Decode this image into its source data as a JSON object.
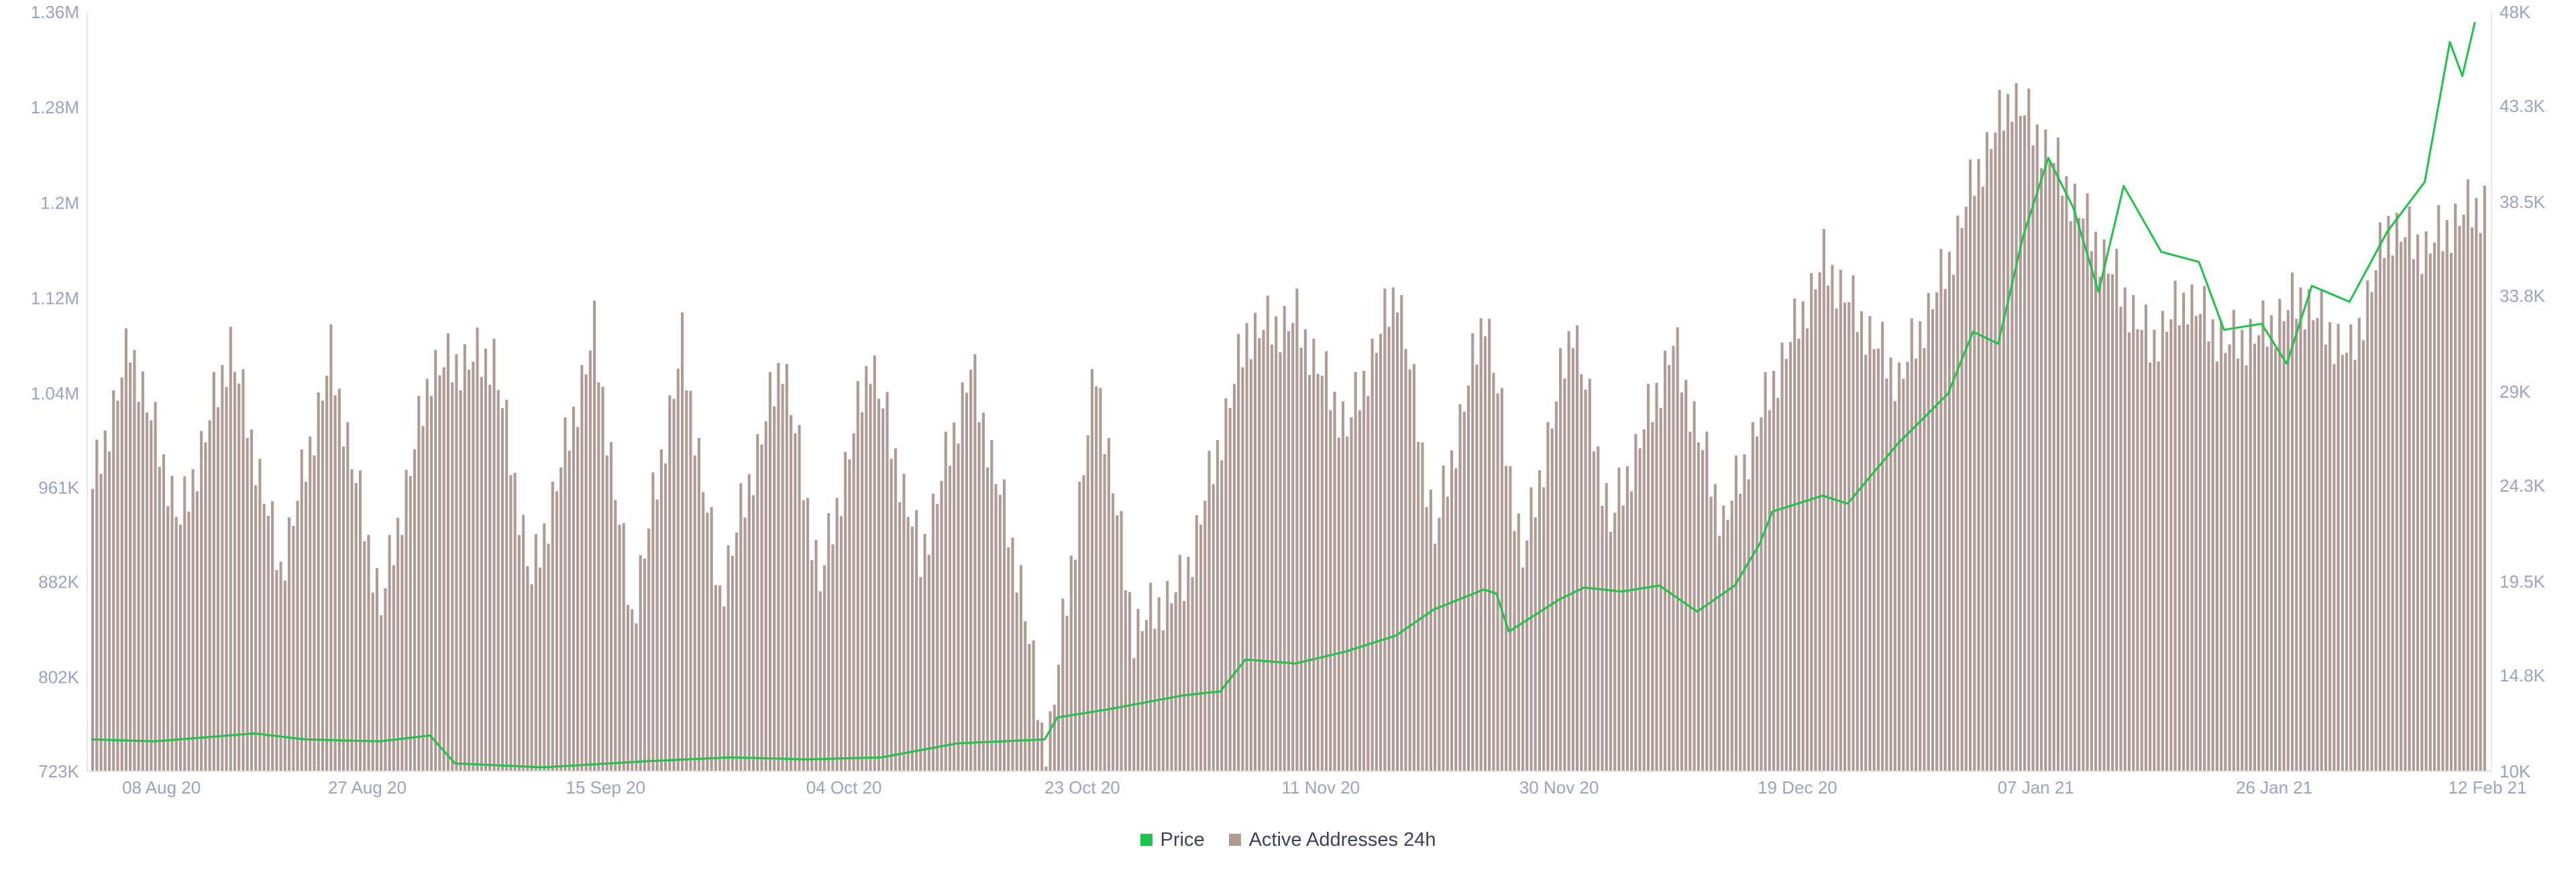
{
  "chart_data": {
    "type": "bar",
    "title": "",
    "xlabel": "",
    "start_date": "2020-08-05",
    "end_date": "2021-02-12",
    "x_tick_labels": [
      "08 Aug 20",
      "27 Aug 20",
      "15 Sep 20",
      "04 Oct 20",
      "23 Oct 20",
      "11 Nov 20",
      "30 Nov 20",
      "19 Dec 20",
      "07 Jan 21",
      "26 Jan 21",
      "12 Feb 21"
    ],
    "x_tick_dates": [
      "2020-08-08",
      "2020-08-27",
      "2020-09-15",
      "2020-10-04",
      "2020-10-23",
      "2020-11-11",
      "2020-11-30",
      "2020-12-19",
      "2021-01-07",
      "2021-01-26",
      "2021-02-12"
    ],
    "y_left": {
      "label": "",
      "range": [
        723000,
        1360000
      ],
      "tick_labels": [
        "723K",
        "802K",
        "882K",
        "961K",
        "1.04M",
        "1.12M",
        "1.2M",
        "1.28M",
        "1.36M"
      ],
      "tick_values": [
        723000,
        802000,
        882000,
        961000,
        1040000,
        1120000,
        1200000,
        1280000,
        1360000
      ]
    },
    "y_right": {
      "label": "",
      "range": [
        10000,
        48000
      ],
      "tick_labels": [
        "10K",
        "14.8K",
        "19.5K",
        "24.3K",
        "29K",
        "33.8K",
        "38.5K",
        "43.3K",
        "48K"
      ],
      "tick_values": [
        10000,
        14800,
        19500,
        24300,
        29000,
        33800,
        38500,
        43300,
        48000
      ]
    },
    "legend_position": "bottom-center",
    "grid": false,
    "series": [
      {
        "name": "Price",
        "type": "line",
        "axis": "right",
        "color": "#1fc24a",
        "anchors": [
          [
            "2020-08-05",
            11600
          ],
          [
            "2020-08-10",
            11500
          ],
          [
            "2020-08-18",
            11900
          ],
          [
            "2020-08-22",
            11600
          ],
          [
            "2020-08-28",
            11500
          ],
          [
            "2020-09-01",
            11800
          ],
          [
            "2020-09-03",
            10400
          ],
          [
            "2020-09-10",
            10200
          ],
          [
            "2020-09-18",
            10500
          ],
          [
            "2020-09-25",
            10700
          ],
          [
            "2020-10-01",
            10600
          ],
          [
            "2020-10-07",
            10700
          ],
          [
            "2020-10-13",
            11400
          ],
          [
            "2020-10-20",
            11600
          ],
          [
            "2020-10-21",
            12700
          ],
          [
            "2020-10-25",
            13100
          ],
          [
            "2020-10-31",
            13800
          ],
          [
            "2020-11-03",
            14000
          ],
          [
            "2020-11-05",
            15600
          ],
          [
            "2020-11-09",
            15400
          ],
          [
            "2020-11-13",
            16000
          ],
          [
            "2020-11-17",
            16800
          ],
          [
            "2020-11-20",
            18100
          ],
          [
            "2020-11-24",
            19100
          ],
          [
            "2020-11-25",
            18900
          ],
          [
            "2020-11-26",
            17000
          ],
          [
            "2020-11-30",
            18600
          ],
          [
            "2020-12-02",
            19200
          ],
          [
            "2020-12-05",
            19000
          ],
          [
            "2020-12-08",
            19300
          ],
          [
            "2020-12-11",
            18000
          ],
          [
            "2020-12-14",
            19300
          ],
          [
            "2020-12-16",
            21400
          ],
          [
            "2020-12-17",
            23000
          ],
          [
            "2020-12-21",
            23800
          ],
          [
            "2020-12-23",
            23400
          ],
          [
            "2020-12-27",
            26400
          ],
          [
            "2020-12-31",
            28900
          ],
          [
            "2021-01-02",
            32000
          ],
          [
            "2021-01-04",
            31400
          ],
          [
            "2021-01-06",
            36800
          ],
          [
            "2021-01-08",
            40700
          ],
          [
            "2021-01-10",
            38200
          ],
          [
            "2021-01-12",
            34000
          ],
          [
            "2021-01-14",
            39300
          ],
          [
            "2021-01-17",
            36000
          ],
          [
            "2021-01-20",
            35500
          ],
          [
            "2021-01-22",
            32100
          ],
          [
            "2021-01-25",
            32400
          ],
          [
            "2021-01-27",
            30400
          ],
          [
            "2021-01-29",
            34300
          ],
          [
            "2021-02-01",
            33500
          ],
          [
            "2021-02-04",
            37000
          ],
          [
            "2021-02-07",
            39500
          ],
          [
            "2021-02-09",
            46500
          ],
          [
            "2021-02-10",
            44800
          ],
          [
            "2021-02-11",
            47500
          ]
        ]
      },
      {
        "name": "Active Addresses 24h",
        "type": "bar",
        "axis": "left",
        "color": "#b09a94",
        "anchors": [
          [
            "2020-08-05",
            960000
          ],
          [
            "2020-08-08",
            1080000
          ],
          [
            "2020-08-12",
            930000
          ],
          [
            "2020-08-16",
            1080000
          ],
          [
            "2020-08-20",
            890000
          ],
          [
            "2020-08-24",
            1070000
          ],
          [
            "2020-08-28",
            860000
          ],
          [
            "2020-09-01",
            1060000
          ],
          [
            "2020-09-06",
            1070000
          ],
          [
            "2020-09-09",
            880000
          ],
          [
            "2020-09-14",
            1090000
          ],
          [
            "2020-09-17",
            850000
          ],
          [
            "2020-09-21",
            1080000
          ],
          [
            "2020-09-24",
            870000
          ],
          [
            "2020-09-29",
            1070000
          ],
          [
            "2020-10-02",
            880000
          ],
          [
            "2020-10-06",
            1070000
          ],
          [
            "2020-10-10",
            900000
          ],
          [
            "2020-10-14",
            1060000
          ],
          [
            "2020-10-18",
            880000
          ],
          [
            "2020-10-20",
            730000
          ],
          [
            "2020-10-24",
            1060000
          ],
          [
            "2020-10-27",
            840000
          ],
          [
            "2020-10-31",
            880000
          ],
          [
            "2020-11-05",
            1090000
          ],
          [
            "2020-11-09",
            1100000
          ],
          [
            "2020-11-13",
            1010000
          ],
          [
            "2020-11-17",
            1130000
          ],
          [
            "2020-11-20",
            920000
          ],
          [
            "2020-11-24",
            1110000
          ],
          [
            "2020-11-27",
            900000
          ],
          [
            "2020-12-01",
            1100000
          ],
          [
            "2020-12-04",
            930000
          ],
          [
            "2020-12-09",
            1080000
          ],
          [
            "2020-12-13",
            930000
          ],
          [
            "2020-12-17",
            1050000
          ],
          [
            "2020-12-21",
            1150000
          ],
          [
            "2020-12-24",
            1100000
          ],
          [
            "2020-12-27",
            1050000
          ],
          [
            "2020-12-31",
            1150000
          ],
          [
            "2021-01-02",
            1220000
          ],
          [
            "2021-01-05",
            1290000
          ],
          [
            "2021-01-08",
            1240000
          ],
          [
            "2021-01-11",
            1180000
          ],
          [
            "2021-01-13",
            1140000
          ],
          [
            "2021-01-16",
            1080000
          ],
          [
            "2021-01-19",
            1120000
          ],
          [
            "2021-01-22",
            1080000
          ],
          [
            "2021-01-25",
            1090000
          ],
          [
            "2021-01-28",
            1120000
          ],
          [
            "2021-02-01",
            1070000
          ],
          [
            "2021-02-04",
            1180000
          ],
          [
            "2021-02-07",
            1160000
          ],
          [
            "2021-02-10",
            1190000
          ],
          [
            "2021-02-12",
            1200000
          ]
        ]
      }
    ]
  },
  "legend": [
    {
      "label": "Price",
      "color": "#1fc24a"
    },
    {
      "label": "Active Addresses 24h",
      "color": "#b09a94"
    }
  ]
}
